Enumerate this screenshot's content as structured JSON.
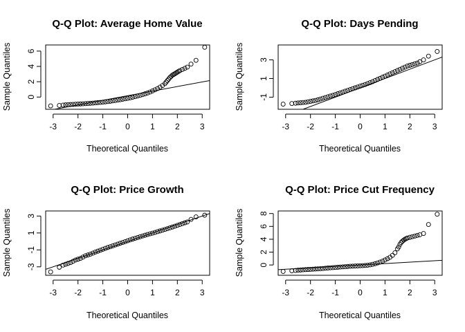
{
  "chart_data": [
    {
      "type": "scatter",
      "title": "Q-Q Plot: Average Home Value",
      "xlabel": "Theoretical Quantiles",
      "ylabel": "Sample Quantiles",
      "xlim": [
        -3.3,
        3.3
      ],
      "ylim": [
        -1.6,
        6.8
      ],
      "xticks": [
        -3,
        -2,
        -1,
        0,
        1,
        2,
        3
      ],
      "yticks": [
        0,
        2,
        4,
        6
      ],
      "reference_line": {
        "intercept": 0.17,
        "slope": 0.6
      },
      "points": {
        "x": [
          -3.1,
          -2.75,
          -2.6,
          -2.5,
          -2.4,
          -2.3,
          -2.2,
          -2.1,
          -2.0,
          -1.9,
          -1.8,
          -1.7,
          -1.6,
          -1.5,
          -1.4,
          -1.3,
          -1.2,
          -1.1,
          -1.0,
          -0.9,
          -0.8,
          -0.7,
          -0.6,
          -0.5,
          -0.4,
          -0.3,
          -0.2,
          -0.1,
          0.0,
          0.1,
          0.2,
          0.3,
          0.4,
          0.5,
          0.6,
          0.7,
          0.8,
          0.9,
          1.0,
          1.1,
          1.2,
          1.3,
          1.4,
          1.5,
          1.55,
          1.6,
          1.65,
          1.7,
          1.75,
          1.8,
          1.85,
          1.9,
          1.95,
          2.0,
          2.05,
          2.1,
          2.2,
          2.3,
          2.4,
          2.55,
          2.75,
          3.1
        ],
        "y": [
          -1.15,
          -1.1,
          -1.05,
          -1.02,
          -1.0,
          -0.98,
          -0.96,
          -0.94,
          -0.92,
          -0.9,
          -0.88,
          -0.86,
          -0.84,
          -0.82,
          -0.79,
          -0.76,
          -0.73,
          -0.7,
          -0.67,
          -0.63,
          -0.59,
          -0.55,
          -0.5,
          -0.45,
          -0.4,
          -0.35,
          -0.29,
          -0.23,
          -0.17,
          -0.1,
          -0.03,
          0.05,
          0.13,
          0.22,
          0.31,
          0.42,
          0.53,
          0.65,
          0.8,
          0.95,
          1.1,
          1.3,
          1.5,
          1.75,
          1.95,
          2.15,
          2.35,
          2.55,
          2.7,
          2.85,
          2.95,
          3.05,
          3.15,
          3.25,
          3.35,
          3.45,
          3.6,
          3.75,
          3.9,
          4.3,
          4.8,
          6.5
        ]
      }
    },
    {
      "type": "scatter",
      "title": "Q-Q Plot: Days Pending",
      "xlabel": "Theoretical Quantiles",
      "ylabel": "Sample Quantiles",
      "xlim": [
        -3.3,
        3.3
      ],
      "ylim": [
        -2.3,
        4.6
      ],
      "xticks": [
        -3,
        -2,
        -1,
        0,
        1,
        2,
        3
      ],
      "yticks": [
        -1,
        1,
        3
      ],
      "reference_line": {
        "intercept": 0.0,
        "slope": 1.0
      },
      "points": {
        "x": [
          -3.1,
          -2.75,
          -2.6,
          -2.5,
          -2.4,
          -2.3,
          -2.2,
          -2.1,
          -2.0,
          -1.9,
          -1.8,
          -1.7,
          -1.6,
          -1.5,
          -1.4,
          -1.3,
          -1.2,
          -1.1,
          -1.0,
          -0.9,
          -0.8,
          -0.7,
          -0.6,
          -0.5,
          -0.4,
          -0.3,
          -0.2,
          -0.1,
          0.0,
          0.1,
          0.2,
          0.3,
          0.4,
          0.5,
          0.6,
          0.7,
          0.8,
          0.9,
          1.0,
          1.1,
          1.2,
          1.3,
          1.4,
          1.5,
          1.6,
          1.7,
          1.8,
          1.9,
          2.0,
          2.1,
          2.2,
          2.3,
          2.4,
          2.55,
          2.75,
          3.1
        ],
        "y": [
          -1.75,
          -1.68,
          -1.65,
          -1.62,
          -1.6,
          -1.57,
          -1.55,
          -1.5,
          -1.45,
          -1.4,
          -1.35,
          -1.28,
          -1.2,
          -1.12,
          -1.04,
          -0.96,
          -0.88,
          -0.8,
          -0.72,
          -0.63,
          -0.54,
          -0.45,
          -0.36,
          -0.27,
          -0.18,
          -0.09,
          0.0,
          0.09,
          0.18,
          0.27,
          0.36,
          0.46,
          0.56,
          0.66,
          0.78,
          0.9,
          1.02,
          1.14,
          1.26,
          1.38,
          1.5,
          1.62,
          1.74,
          1.86,
          1.98,
          2.1,
          2.22,
          2.34,
          2.42,
          2.5,
          2.58,
          2.66,
          2.8,
          3.0,
          3.4,
          3.9
        ]
      }
    },
    {
      "type": "scatter",
      "title": "Q-Q Plot: Price Growth",
      "xlabel": "Theoretical Quantiles",
      "ylabel": "Sample Quantiles",
      "xlim": [
        -3.3,
        3.3
      ],
      "ylim": [
        -4.0,
        3.6
      ],
      "xticks": [
        -3,
        -2,
        -1,
        0,
        1,
        2,
        3
      ],
      "yticks": [
        -3,
        -1,
        1,
        3
      ],
      "reference_line": {
        "intercept": 0.0,
        "slope": 1.0
      },
      "points": {
        "x": [
          -3.1,
          -2.75,
          -2.6,
          -2.5,
          -2.4,
          -2.3,
          -2.2,
          -2.1,
          -2.0,
          -1.9,
          -1.8,
          -1.7,
          -1.6,
          -1.5,
          -1.4,
          -1.3,
          -1.2,
          -1.1,
          -1.0,
          -0.9,
          -0.8,
          -0.7,
          -0.6,
          -0.5,
          -0.4,
          -0.3,
          -0.2,
          -0.1,
          0.0,
          0.1,
          0.2,
          0.3,
          0.4,
          0.5,
          0.6,
          0.7,
          0.8,
          0.9,
          1.0,
          1.1,
          1.2,
          1.3,
          1.4,
          1.5,
          1.6,
          1.7,
          1.8,
          1.9,
          2.0,
          2.1,
          2.2,
          2.3,
          2.4,
          2.55,
          2.75,
          3.1
        ],
        "y": [
          -3.6,
          -3.05,
          -2.8,
          -2.7,
          -2.6,
          -2.5,
          -2.35,
          -2.2,
          -2.1,
          -2.0,
          -1.85,
          -1.7,
          -1.6,
          -1.5,
          -1.38,
          -1.26,
          -1.15,
          -1.04,
          -0.93,
          -0.82,
          -0.72,
          -0.62,
          -0.52,
          -0.42,
          -0.32,
          -0.22,
          -0.12,
          -0.02,
          0.08,
          0.18,
          0.28,
          0.37,
          0.46,
          0.55,
          0.64,
          0.73,
          0.82,
          0.9,
          0.98,
          1.06,
          1.15,
          1.24,
          1.33,
          1.42,
          1.51,
          1.6,
          1.7,
          1.8,
          1.9,
          2.0,
          2.1,
          2.2,
          2.3,
          2.6,
          2.9,
          3.1
        ]
      }
    },
    {
      "type": "scatter",
      "title": "Q-Q Plot: Price Cut Frequency",
      "xlabel": "Theoretical Quantiles",
      "ylabel": "Sample Quantiles",
      "xlim": [
        -3.3,
        3.3
      ],
      "ylim": [
        -1.6,
        8.4
      ],
      "xticks": [
        -3,
        -2,
        -1,
        0,
        1,
        2,
        3
      ],
      "yticks": [
        0,
        2,
        4,
        6,
        8
      ],
      "reference_line": {
        "intercept": 0.0,
        "slope": 0.22
      },
      "points": {
        "x": [
          -3.1,
          -2.75,
          -2.6,
          -2.5,
          -2.4,
          -2.3,
          -2.2,
          -2.1,
          -2.0,
          -1.9,
          -1.8,
          -1.7,
          -1.6,
          -1.5,
          -1.4,
          -1.3,
          -1.2,
          -1.1,
          -1.0,
          -0.9,
          -0.8,
          -0.7,
          -0.6,
          -0.5,
          -0.4,
          -0.3,
          -0.2,
          -0.1,
          0.0,
          0.1,
          0.2,
          0.3,
          0.4,
          0.5,
          0.6,
          0.7,
          0.8,
          0.9,
          1.0,
          1.1,
          1.2,
          1.3,
          1.4,
          1.5,
          1.55,
          1.6,
          1.65,
          1.7,
          1.75,
          1.8,
          1.85,
          1.9,
          2.0,
          2.1,
          2.2,
          2.3,
          2.4,
          2.55,
          2.75,
          3.1
        ],
        "y": [
          -1.0,
          -0.9,
          -0.85,
          -0.8,
          -0.78,
          -0.75,
          -0.72,
          -0.7,
          -0.68,
          -0.65,
          -0.62,
          -0.6,
          -0.57,
          -0.54,
          -0.5,
          -0.47,
          -0.44,
          -0.41,
          -0.38,
          -0.35,
          -0.32,
          -0.29,
          -0.26,
          -0.23,
          -0.2,
          -0.18,
          -0.16,
          -0.14,
          -0.12,
          -0.1,
          -0.07,
          -0.03,
          0.02,
          0.1,
          0.2,
          0.32,
          0.45,
          0.6,
          0.78,
          0.98,
          1.2,
          1.5,
          1.9,
          2.5,
          2.8,
          3.2,
          3.5,
          3.7,
          3.85,
          4.0,
          4.1,
          4.2,
          4.3,
          4.4,
          4.5,
          4.6,
          4.7,
          4.9,
          6.3,
          7.9
        ]
      }
    }
  ]
}
